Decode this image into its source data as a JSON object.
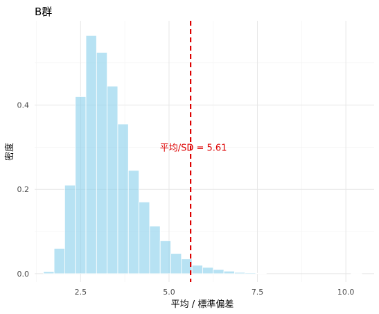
{
  "chart_data": {
    "type": "bar",
    "title": "B群",
    "xlabel": "平均 / 標準偏差",
    "ylabel": "密度",
    "xlim": [
      1.2,
      10.8
    ],
    "ylim": [
      -0.02,
      0.6
    ],
    "x_ticks": [
      2.5,
      5.0,
      7.5,
      10.0
    ],
    "x_tick_labels": [
      "2.5",
      "5.0",
      "7.5",
      "10.0"
    ],
    "y_ticks": [
      0.0,
      0.2,
      0.4
    ],
    "y_tick_labels": [
      "0.0",
      "0.2",
      "0.4"
    ],
    "grid": true,
    "bar_color": "#87ceeb",
    "bins": [
      {
        "x0": 1.45,
        "x1": 1.75,
        "value": 0.005
      },
      {
        "x0": 1.75,
        "x1": 2.05,
        "value": 0.06
      },
      {
        "x0": 2.05,
        "x1": 2.35,
        "value": 0.21
      },
      {
        "x0": 2.35,
        "x1": 2.65,
        "value": 0.42
      },
      {
        "x0": 2.65,
        "x1": 2.95,
        "value": 0.565
      },
      {
        "x0": 2.95,
        "x1": 3.25,
        "value": 0.525
      },
      {
        "x0": 3.25,
        "x1": 3.55,
        "value": 0.445
      },
      {
        "x0": 3.55,
        "x1": 3.85,
        "value": 0.355
      },
      {
        "x0": 3.85,
        "x1": 4.15,
        "value": 0.245
      },
      {
        "x0": 4.15,
        "x1": 4.45,
        "value": 0.17
      },
      {
        "x0": 4.45,
        "x1": 4.75,
        "value": 0.113
      },
      {
        "x0": 4.75,
        "x1": 5.05,
        "value": 0.078
      },
      {
        "x0": 5.05,
        "x1": 5.35,
        "value": 0.048
      },
      {
        "x0": 5.35,
        "x1": 5.65,
        "value": 0.035
      },
      {
        "x0": 5.65,
        "x1": 5.95,
        "value": 0.02
      },
      {
        "x0": 5.95,
        "x1": 6.25,
        "value": 0.015
      },
      {
        "x0": 6.25,
        "x1": 6.55,
        "value": 0.01
      },
      {
        "x0": 6.55,
        "x1": 6.85,
        "value": 0.006
      },
      {
        "x0": 6.85,
        "x1": 7.15,
        "value": 0.003
      },
      {
        "x0": 7.15,
        "x1": 7.45,
        "value": 0.002
      },
      {
        "x0": 7.45,
        "x1": 7.75,
        "value": 0.001
      },
      {
        "x0": 10.15,
        "x1": 10.45,
        "value": 0.0005
      }
    ],
    "reference_line": {
      "x": 5.61,
      "color": "#dd0000",
      "style": "dashed",
      "label": "平均/SD = 5.61",
      "label_y": 0.3
    }
  }
}
